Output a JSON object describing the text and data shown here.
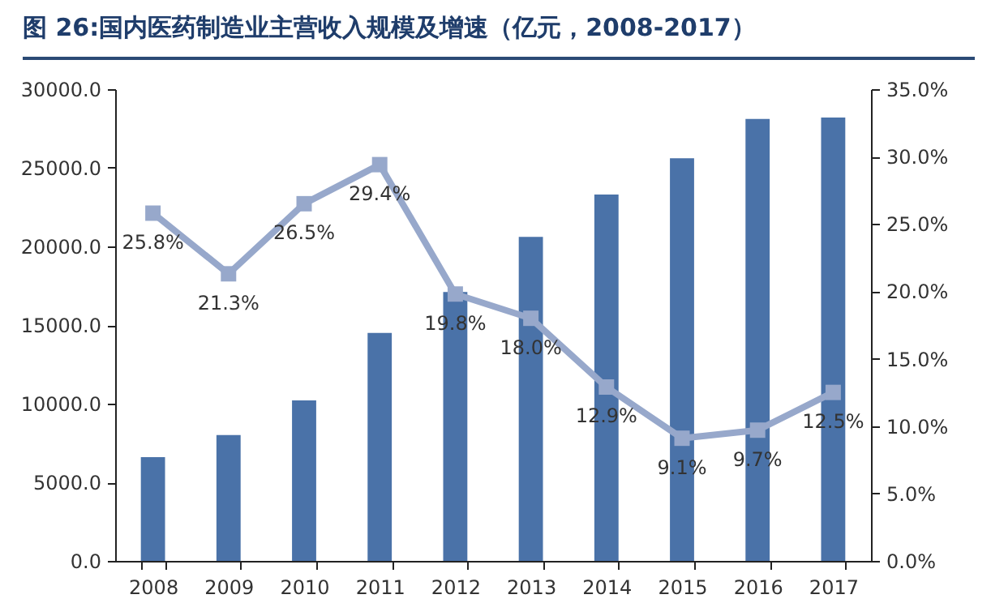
{
  "chart_data": {
    "type": "bar",
    "title": "图 26:国内医药制造业主营收入规模及增速（亿元，2008-2017）",
    "categories": [
      "2008",
      "2009",
      "2010",
      "2011",
      "2012",
      "2013",
      "2014",
      "2015",
      "2016",
      "2017"
    ],
    "series": [
      {
        "color": "#4a72a8",
        "values": [
          6600,
          8000,
          10200,
          14500,
          17100,
          20600,
          23300,
          25600,
          28100,
          28200
        ]
      },
      {
        "type": "line",
        "axis": "y2",
        "color": "#97a8cb",
        "marker": "square",
        "values": [
          25.8,
          21.3,
          26.5,
          29.4,
          19.8,
          18.0,
          12.9,
          9.1,
          9.7,
          12.5
        ],
        "value_labels": [
          "25.8%",
          "21.3%",
          "26.5%",
          "29.4%",
          "19.8%",
          "18.0%",
          "12.9%",
          "9.1%",
          "9.7%",
          "12.5%"
        ]
      }
    ],
    "ylim": [
      0,
      30000
    ],
    "yticks": [
      {
        "value": 0,
        "label": "0.0"
      },
      {
        "value": 5000,
        "label": "5000.0"
      },
      {
        "value": 10000,
        "label": "10000.0"
      },
      {
        "value": 15000,
        "label": "15000.0"
      },
      {
        "value": 20000,
        "label": "20000.0"
      },
      {
        "value": 25000,
        "label": "25000.0"
      },
      {
        "value": 30000,
        "label": "30000.0"
      }
    ],
    "y2lim": [
      0,
      35
    ],
    "y2ticks": [
      {
        "value": 0,
        "label": "0.0%"
      },
      {
        "value": 5,
        "label": "5.0%"
      },
      {
        "value": 10,
        "label": "10.0%"
      },
      {
        "value": 15,
        "label": "15.0%"
      },
      {
        "value": 20,
        "label": "20.0%"
      },
      {
        "value": 25,
        "label": "25.0%"
      },
      {
        "value": 30,
        "label": "30.0%"
      },
      {
        "value": 35,
        "label": "35.0%"
      }
    ],
    "grid": false
  }
}
